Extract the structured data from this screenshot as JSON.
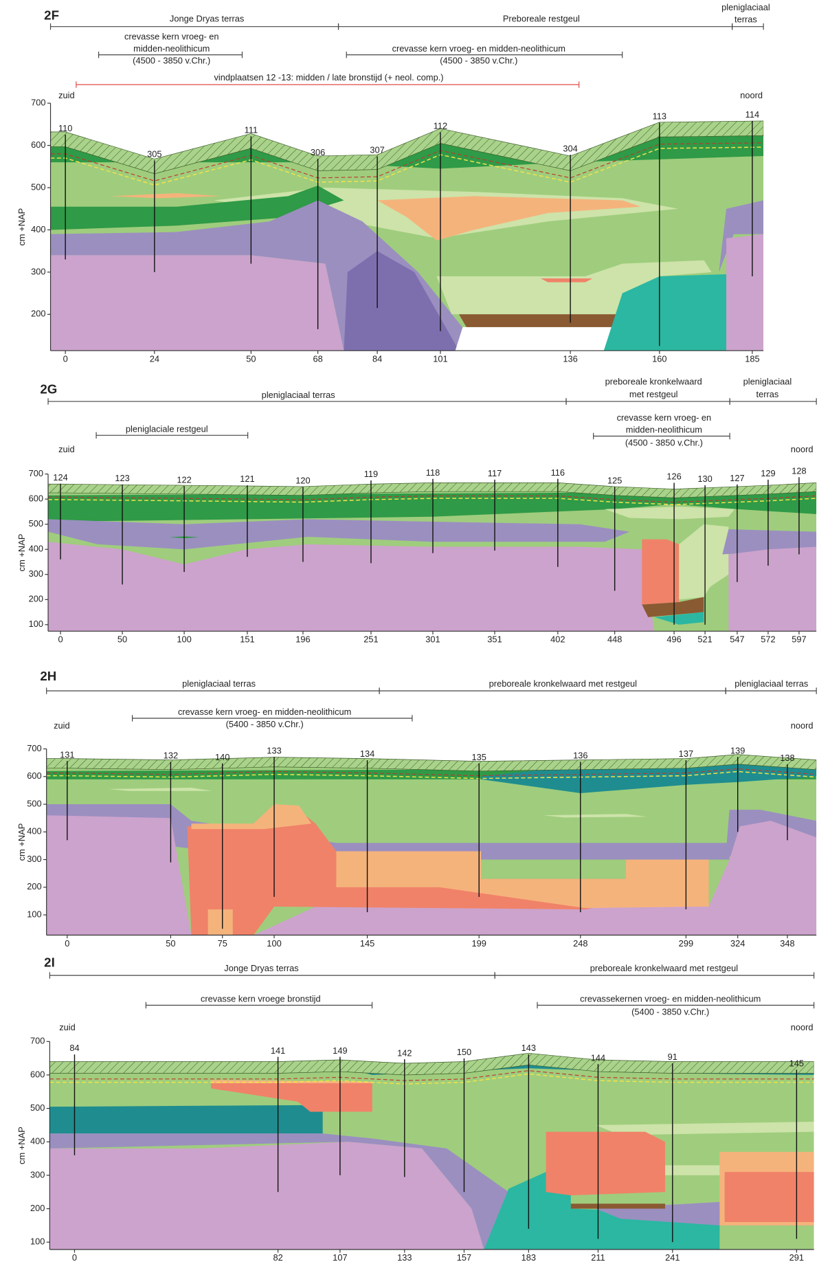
{
  "panels": [
    {
      "label": "2F",
      "spans": [
        {
          "text": [
            "Jonge Dryas terras"
          ]
        },
        {
          "text": [
            "Preboreale restgeul"
          ]
        },
        {
          "text": [
            "pleniglaciaal",
            "terras"
          ]
        },
        {
          "text": [
            "crevasse kern vroeg- en",
            "midden-neolithicum",
            "(4500 - 3850 v.Chr.)"
          ]
        },
        {
          "text": [
            "crevasse kern vroeg- en midden-neolithicum",
            "(4500 - 3850 v.Chr.)"
          ]
        },
        {
          "text": [
            "vindplaatsen 12 -13: midden / late bronstijd (+ neol. comp.)"
          ],
          "color": "#e04848"
        }
      ],
      "left": "zuid",
      "right": "noord",
      "y_label": "cm +NAP",
      "ylim": [
        114,
        700
      ],
      "yticks": [
        700,
        600,
        500,
        400,
        300,
        200
      ],
      "xlim": [
        -4,
        188
      ],
      "xticks": [
        0,
        24,
        50,
        68,
        84,
        101,
        136,
        160,
        185
      ],
      "boreholes": [
        "110",
        "305",
        "111",
        "306",
        "307",
        "112",
        "304",
        "113",
        "114"
      ]
    },
    {
      "label": "2G",
      "spans": [
        {
          "text": [
            "pleniglaciaal terras"
          ]
        },
        {
          "text": [
            "preboreale kronkelwaard",
            "met restgeul"
          ]
        },
        {
          "text": [
            "pleniglaciaal",
            "terras"
          ]
        },
        {
          "text": [
            "pleniglaciale restgeul"
          ]
        },
        {
          "text": [
            "crevasse kern vroeg- en",
            "midden-neolithicum",
            "(4500 - 3850 v.Chr.)"
          ]
        }
      ],
      "left": "zuid",
      "right": "noord",
      "y_label": "cm +NAP",
      "ylim": [
        74,
        700
      ],
      "yticks": [
        700,
        600,
        500,
        400,
        300,
        200,
        100
      ],
      "xlim": [
        -10,
        611
      ],
      "xticks": [
        0,
        50,
        100,
        151,
        196,
        251,
        301,
        351,
        402,
        448,
        496,
        521,
        547,
        572,
        597
      ],
      "boreholes": [
        "124",
        "123",
        "122",
        "121",
        "120",
        "119",
        "118",
        "117",
        "116",
        "125",
        "126",
        "130",
        "127",
        "129",
        "128"
      ]
    },
    {
      "label": "2H",
      "spans": [
        {
          "text": [
            "pleniglaciaal terras"
          ]
        },
        {
          "text": [
            "preboreale kronkelwaard met restgeul"
          ]
        },
        {
          "text": [
            "pleniglaciaal terras"
          ]
        },
        {
          "text": [
            "crevasse kern vroeg- en midden-neolithicum",
            "(5400 - 3850 v.Chr.)"
          ]
        }
      ],
      "left": "zuid",
      "right": "noord",
      "y_label": "cm +NAP",
      "ylim": [
        27,
        700
      ],
      "yticks": [
        700,
        600,
        500,
        400,
        300,
        200,
        100
      ],
      "xlim": [
        -10,
        362
      ],
      "xticks": [
        0,
        50,
        75,
        100,
        145,
        199,
        248,
        299,
        324,
        348
      ],
      "boreholes": [
        "131",
        "132",
        "140",
        "133",
        "134",
        "135",
        "136",
        "137",
        "139",
        "138"
      ]
    },
    {
      "label": "2I",
      "spans": [
        {
          "text": [
            "Jonge Dryas terras"
          ]
        },
        {
          "text": [
            "preboreale kronkelwaard met restgeul"
          ]
        },
        {
          "text": [
            "crevasse kern vroege bronstijd"
          ]
        },
        {
          "text": [
            "crevassekernen vroeg- en midden-neolithicum",
            "(5400 - 3850 v.Chr.)"
          ]
        }
      ],
      "left": "zuid",
      "right": "noord",
      "y_label": "cm +NAP",
      "ylim": [
        78,
        700
      ],
      "yticks": [
        700,
        600,
        500,
        400,
        300,
        200,
        100
      ],
      "xlim": [
        -10,
        298
      ],
      "xticks": [
        0,
        82,
        107,
        133,
        157,
        183,
        211,
        241,
        291
      ],
      "boreholes": [
        "84",
        "141",
        "149",
        "142",
        "150",
        "143",
        "144",
        "91",
        "145"
      ]
    }
  ]
}
